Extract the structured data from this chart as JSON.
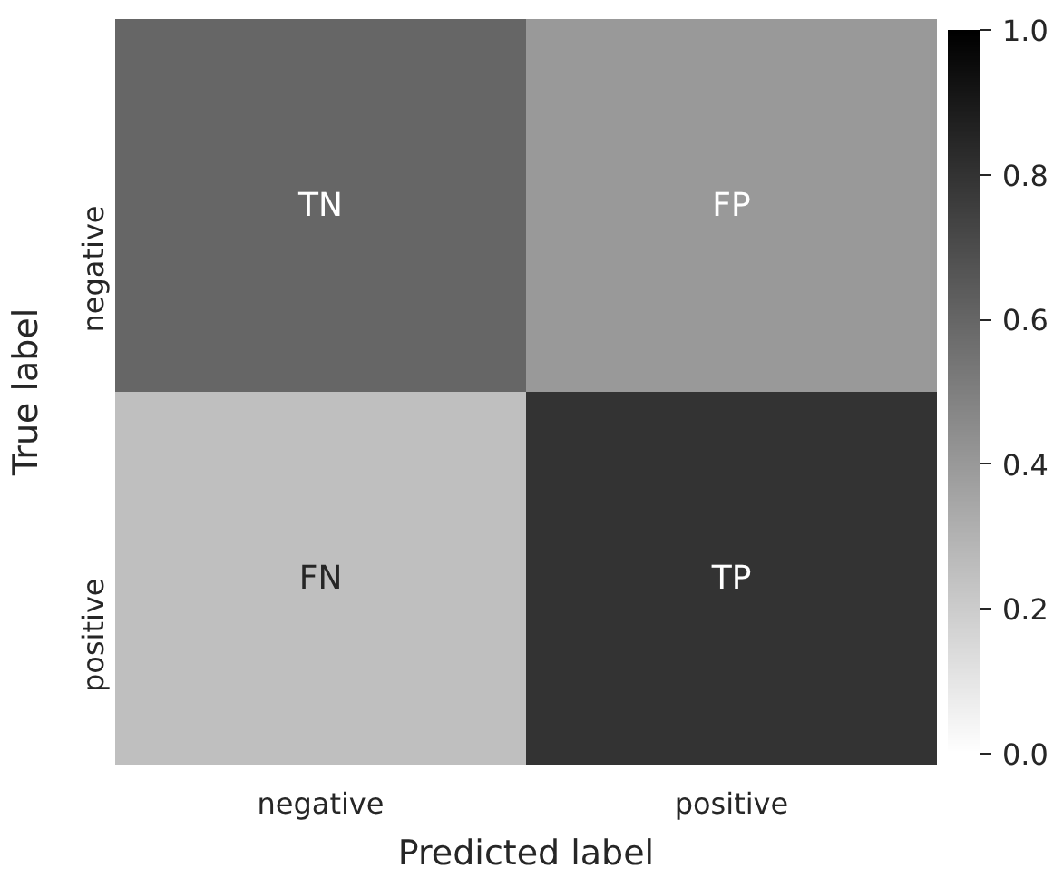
{
  "chart_data": {
    "type": "heatmap",
    "xlabel": "Predicted label",
    "ylabel": "True label",
    "categories": [
      "negative",
      "positive"
    ],
    "y_categories": [
      "negative",
      "positive"
    ],
    "cells": [
      [
        0.6,
        0.4
      ],
      [
        0.25,
        0.8
      ]
    ],
    "cell_labels": [
      [
        "TN",
        "FP"
      ],
      [
        "FN",
        "TP"
      ]
    ],
    "clim": [
      0.0,
      1.0
    ],
    "cticks": [
      {
        "value": 0.0,
        "label": "0.0"
      },
      {
        "value": 0.2,
        "label": "0.2"
      },
      {
        "value": 0.4,
        "label": "0.4"
      },
      {
        "value": 0.6,
        "label": "0.6"
      },
      {
        "value": 0.8,
        "label": "0.8"
      },
      {
        "value": 1.0,
        "label": "1.0"
      }
    ]
  }
}
